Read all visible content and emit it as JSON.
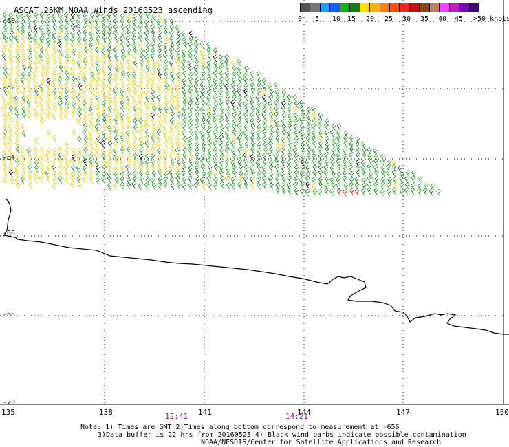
{
  "title": "ASCAT 25KM NOAA Winds 20160523 ascending",
  "legend": {
    "colors": [
      "#555555",
      "#777777",
      "#1fa0ff",
      "#1060ff",
      "#10b010",
      "#108010",
      "#ffe000",
      "#ffb000",
      "#ff8000",
      "#ff5000",
      "#ff2020",
      "#c01010",
      "#8b4513",
      "#c08060",
      "#ff40ff",
      "#c020c0",
      "#8000c0",
      "#400080"
    ],
    "labels": [
      "0",
      "5",
      "10",
      "15",
      "20",
      "25",
      "30",
      "35",
      "40",
      "45",
      ">50 knots"
    ]
  },
  "map": {
    "lat_labels": [
      "-60",
      "-62",
      "-64",
      "-66",
      "-68",
      "-70"
    ],
    "lon_labels": [
      "135",
      "138",
      "141",
      "144",
      "147",
      "150"
    ],
    "time_labels": [
      "12:41",
      "14:21"
    ],
    "lat_range": [
      -70,
      -60
    ],
    "lon_range": [
      135,
      150
    ],
    "barb_colors": {
      "dark_green": "#1a7a1a",
      "green": "#22aa22",
      "yellow": "#f2d200",
      "orange": "#e07000",
      "red": "#d02020",
      "black": "#000000"
    }
  },
  "notes": {
    "line1": "Note: 1) Times are GMT 2)Times along bottom correspond to measurement at -65S",
    "line2": "3)Data buffer is 22 hrs from 20160523 4) Black wind barbs indicate possible contamination",
    "line3": "NOAA/NESDIS/Center for Satellite Applications and Research"
  }
}
